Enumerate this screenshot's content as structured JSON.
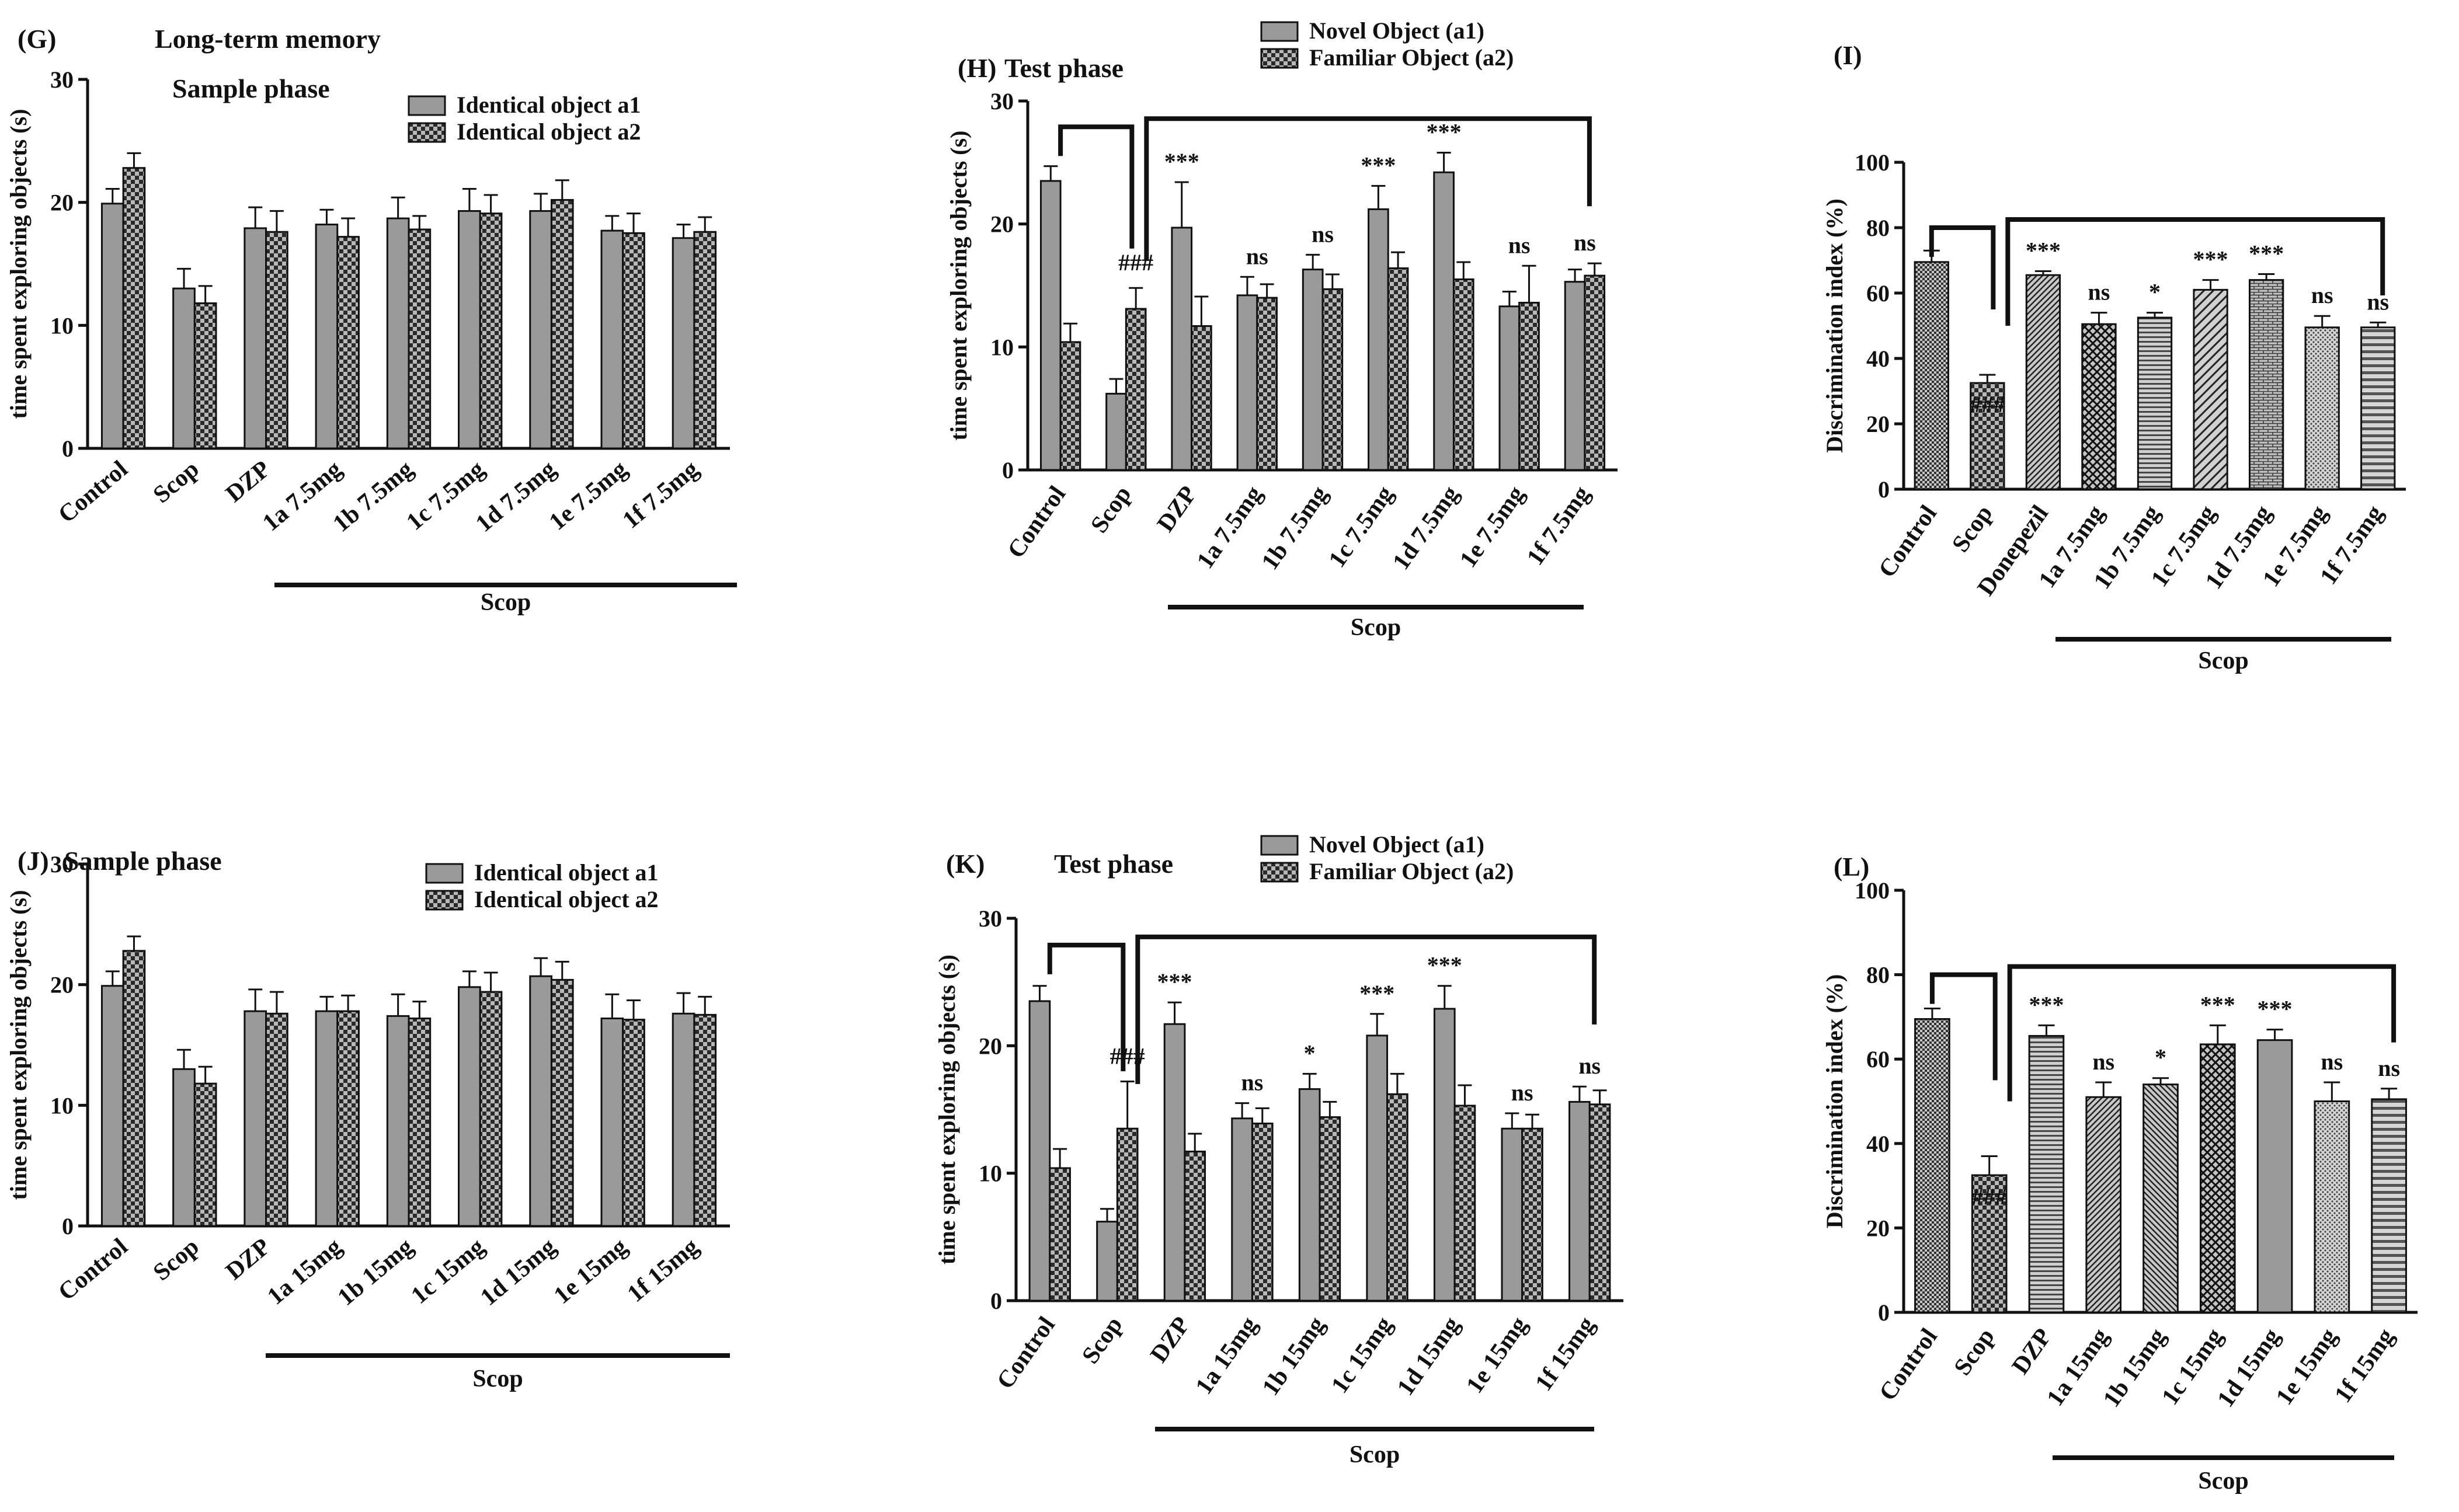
{
  "colors": {
    "bar_gray": "#9a9a9a",
    "bar_gray_dark": "#8a8a8a",
    "checker_dark": "#2a2a2a",
    "checker_light": "#b8b8b8",
    "axis": "#111111"
  },
  "chart_data": [
    {
      "panel": "G",
      "type": "bar",
      "title": "(G)",
      "heading": "Long-term memory",
      "subtitle": "Sample phase",
      "xlabel": "",
      "ylabel": "time spent exploring objects (s)",
      "ylim": [
        0,
        30
      ],
      "yticks": [
        "0",
        "10",
        "20",
        "30"
      ],
      "categories": [
        "Control",
        "Scop",
        "DZP",
        "1a 7.5mg",
        "1b 7.5mg",
        "1c 7.5mg",
        "1d 7.5mg",
        "1e 7.5mg",
        "1f 7.5mg"
      ],
      "group_label": "Scop",
      "legend_position": "top-right",
      "series": [
        {
          "name": "Identical object a1",
          "pattern": "solid",
          "values": [
            19.9,
            13.0,
            17.9,
            18.2,
            18.7,
            19.3,
            19.3,
            17.7,
            17.1
          ],
          "errors": [
            1.2,
            1.6,
            1.7,
            1.2,
            1.7,
            1.8,
            1.4,
            1.2,
            1.1
          ]
        },
        {
          "name": "Identical object a2",
          "pattern": "checker",
          "values": [
            22.8,
            11.8,
            17.6,
            17.2,
            17.8,
            19.1,
            20.2,
            17.5,
            17.6
          ],
          "errors": [
            1.2,
            1.4,
            1.7,
            1.5,
            1.1,
            1.5,
            1.6,
            1.6,
            1.2
          ]
        }
      ]
    },
    {
      "panel": "H",
      "type": "bar",
      "title": "(H)",
      "subtitle": "Test phase",
      "xlabel": "",
      "ylabel": "time spent exploring objects (s)",
      "ylim": [
        0,
        30
      ],
      "yticks": [
        "0",
        "10",
        "20",
        "30"
      ],
      "categories": [
        "Control",
        "Scop",
        "DZP",
        "1a 7.5mg",
        "1b 7.5mg",
        "1c 7.5mg",
        "1d 7.5mg",
        "1e 7.5mg",
        "1f 7.5mg"
      ],
      "group_label": "Scop",
      "legend_position": "top",
      "annotations": [
        "",
        "###",
        "***",
        "ns",
        "ns",
        "***",
        "***",
        "ns",
        "ns"
      ],
      "series": [
        {
          "name": "Novel Object (a1)",
          "pattern": "solid",
          "values": [
            23.5,
            6.2,
            19.7,
            14.2,
            16.3,
            21.2,
            24.2,
            13.3,
            15.3
          ],
          "errors": [
            1.2,
            1.2,
            3.7,
            1.5,
            1.2,
            1.9,
            1.6,
            1.2,
            1.0
          ]
        },
        {
          "name": "Familiar Object (a2)",
          "pattern": "checker",
          "values": [
            10.4,
            13.1,
            11.7,
            14.0,
            14.7,
            16.4,
            15.5,
            13.6,
            15.8
          ],
          "errors": [
            1.5,
            1.7,
            2.4,
            1.1,
            1.2,
            1.3,
            1.4,
            3.0,
            1.0
          ]
        }
      ]
    },
    {
      "panel": "I",
      "type": "bar",
      "title": "(I)",
      "xlabel": "",
      "ylabel": "Discrimination index (%)",
      "ylim": [
        0,
        100
      ],
      "yticks": [
        "0",
        "20",
        "40",
        "60",
        "80",
        "100"
      ],
      "categories": [
        "Control",
        "Scop",
        "Donepezil",
        "1a 7.5mg",
        "1b 7.5mg",
        "1c 7.5mg",
        "1d 7.5mg",
        "1e 7.5mg",
        "1f 7.5mg"
      ],
      "group_label": "Scop",
      "annotations": [
        "",
        "###",
        "***",
        "ns",
        "*",
        "***",
        "***",
        "ns",
        "ns"
      ],
      "patterns": [
        "dense-checker",
        "checker",
        "diag-right",
        "crosshatch",
        "horizontal",
        "diag-right-wide",
        "brick",
        "dots",
        "horizontal-wide"
      ],
      "values": [
        69.5,
        32.5,
        65.5,
        50.5,
        52.5,
        61.0,
        64.0,
        49.5,
        49.5
      ],
      "errors": [
        3.5,
        2.5,
        1.2,
        3.5,
        1.5,
        3.0,
        1.8,
        3.5,
        1.5
      ]
    },
    {
      "panel": "J",
      "type": "bar",
      "title": "(J)",
      "subtitle": "Sample phase",
      "xlabel": "",
      "ylabel": "time spent exploring objects (s)",
      "ylim": [
        0,
        30
      ],
      "yticks": [
        "0",
        "10",
        "20",
        "30"
      ],
      "categories": [
        "Control",
        "Scop",
        "DZP",
        "1a 15mg",
        "1b 15mg",
        "1c 15mg",
        "1d 15mg",
        "1e 15mg",
        "1f 15mg"
      ],
      "group_label": "Scop",
      "legend_position": "top-right",
      "series": [
        {
          "name": "Identical object a1",
          "pattern": "solid",
          "values": [
            19.9,
            13.0,
            17.8,
            17.8,
            17.4,
            19.8,
            20.7,
            17.2,
            17.6
          ],
          "errors": [
            1.2,
            1.6,
            1.8,
            1.2,
            1.8,
            1.3,
            1.5,
            2.0,
            1.7
          ]
        },
        {
          "name": "Identical object a2",
          "pattern": "checker",
          "values": [
            22.8,
            11.8,
            17.6,
            17.8,
            17.2,
            19.4,
            20.4,
            17.1,
            17.5
          ],
          "errors": [
            1.2,
            1.4,
            1.8,
            1.3,
            1.4,
            1.6,
            1.5,
            1.6,
            1.5
          ]
        }
      ]
    },
    {
      "panel": "K",
      "type": "bar",
      "title": "(K)",
      "subtitle": "Test phase",
      "xlabel": "",
      "ylabel": "time spent exploring objects (s)",
      "ylim": [
        0,
        30
      ],
      "yticks": [
        "0",
        "10",
        "20",
        "30"
      ],
      "categories": [
        "Control",
        "Scop",
        "DZP",
        "1a 15mg",
        "1b 15mg",
        "1c 15mg",
        "1d 15mg",
        "1e 15mg",
        "1f 15mg"
      ],
      "group_label": "Scop",
      "legend_position": "top",
      "annotations": [
        "",
        "###",
        "***",
        "ns",
        "*",
        "***",
        "***",
        "ns",
        "ns"
      ],
      "series": [
        {
          "name": "Novel Object (a1)",
          "pattern": "solid",
          "values": [
            23.5,
            6.2,
            21.7,
            14.3,
            16.6,
            20.8,
            22.9,
            13.5,
            15.6
          ],
          "errors": [
            1.2,
            1.0,
            1.7,
            1.2,
            1.2,
            1.7,
            1.8,
            1.2,
            1.2
          ]
        },
        {
          "name": "Familiar Object (a2)",
          "pattern": "checker",
          "values": [
            10.4,
            13.5,
            11.7,
            13.9,
            14.4,
            16.2,
            15.3,
            13.5,
            15.4
          ],
          "errors": [
            1.5,
            3.7,
            1.4,
            1.2,
            1.2,
            1.6,
            1.6,
            1.1,
            1.1
          ]
        }
      ]
    },
    {
      "panel": "L",
      "type": "bar",
      "title": "(L)",
      "xlabel": "",
      "ylabel": "Discrimination index (%)",
      "ylim": [
        0,
        100
      ],
      "yticks": [
        "0",
        "20",
        "40",
        "60",
        "80",
        "100"
      ],
      "categories": [
        "Control",
        "Scop",
        "DZP",
        "1a 15mg",
        "1b 15mg",
        "1c 15mg",
        "1d 15mg",
        "1e 15mg",
        "1f 15mg"
      ],
      "group_label": "Scop",
      "annotations": [
        "",
        "###",
        "***",
        "ns",
        "*",
        "***",
        "***",
        "ns",
        "ns"
      ],
      "patterns": [
        "dense-checker",
        "checker",
        "horizontal",
        "diag-right",
        "diag-left",
        "crosshatch",
        "solid",
        "dots",
        "horizontal-wide"
      ],
      "values": [
        69.5,
        32.5,
        65.5,
        51.0,
        54.0,
        63.5,
        64.5,
        50.0,
        50.5
      ],
      "errors": [
        2.5,
        4.5,
        2.5,
        3.5,
        1.5,
        4.5,
        2.5,
        4.5,
        2.5
      ]
    }
  ]
}
